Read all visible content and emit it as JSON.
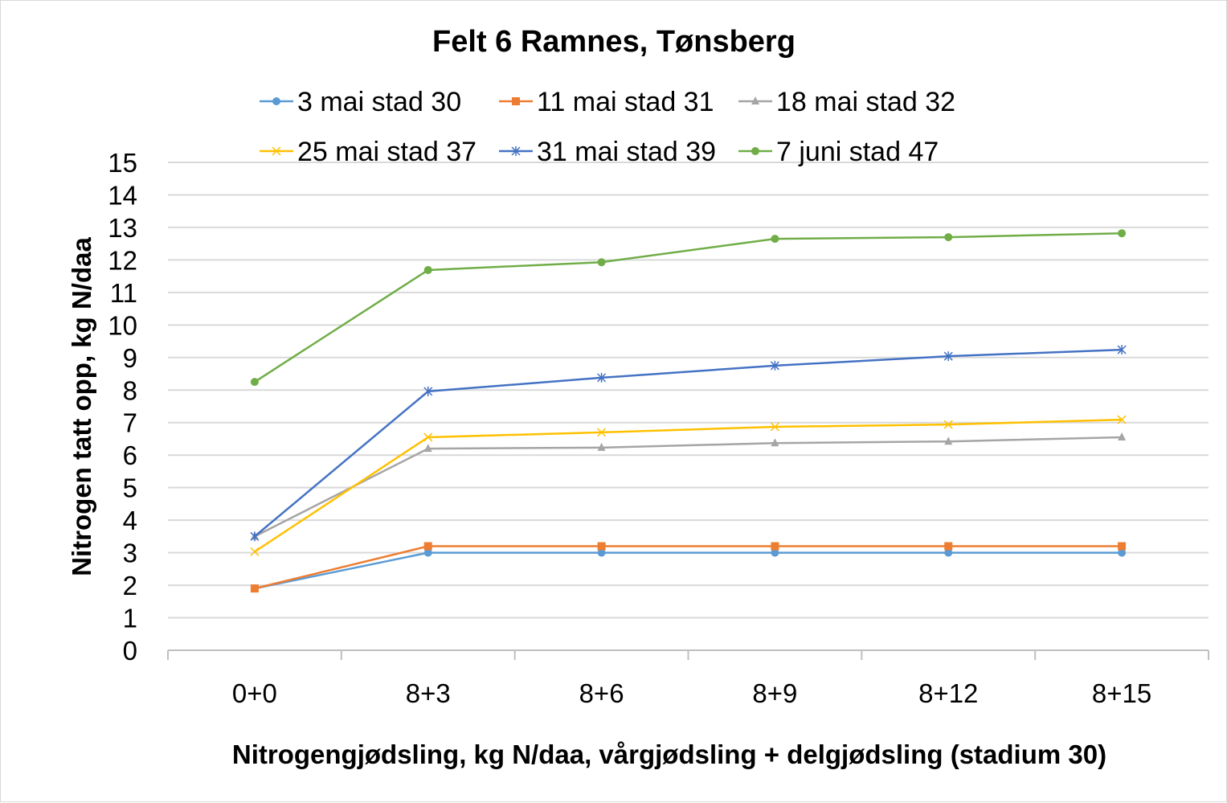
{
  "chart_data": {
    "type": "line",
    "title": "Felt 6 Ramnes, Tønsberg",
    "xlabel": "Nitrogengjødsling, kg N/daa, vårgjødsling + delgjødsling (stadium 30)",
    "ylabel": "Nitrogen tatt opp, kg N/daa",
    "ylim": [
      0,
      15
    ],
    "yticks": [
      0,
      1,
      2,
      3,
      4,
      5,
      6,
      7,
      8,
      9,
      10,
      11,
      12,
      13,
      14,
      15
    ],
    "grid": true,
    "legend_position": "top",
    "categories": [
      "0+0",
      "8+3",
      "8+6",
      "8+9",
      "8+12",
      "8+15"
    ],
    "series": [
      {
        "name": "3 mai stad 30",
        "color": "#5b9bd5",
        "marker": "circle",
        "values": [
          1.9,
          3.0,
          3.0,
          3.0,
          3.0,
          3.0
        ]
      },
      {
        "name": "11 mai stad 31",
        "color": "#ed7d31",
        "marker": "square",
        "values": [
          1.9,
          3.2,
          3.2,
          3.2,
          3.2,
          3.2
        ]
      },
      {
        "name": "18 mai stad 32",
        "color": "#a5a5a5",
        "marker": "triangle",
        "values": [
          3.5,
          6.2,
          6.23,
          6.37,
          6.42,
          6.55
        ]
      },
      {
        "name": "25 mai stad 37",
        "color": "#ffc000",
        "marker": "x",
        "values": [
          3.03,
          6.55,
          6.7,
          6.87,
          6.94,
          7.09
        ]
      },
      {
        "name": "31 mai stad 39",
        "color": "#4472c4",
        "marker": "star",
        "values": [
          3.5,
          7.96,
          8.38,
          8.75,
          9.04,
          9.24
        ]
      },
      {
        "name": "7 juni stad 47",
        "color": "#70ad47",
        "marker": "circle",
        "values": [
          8.25,
          11.69,
          11.93,
          12.65,
          12.7,
          12.82
        ]
      }
    ]
  }
}
